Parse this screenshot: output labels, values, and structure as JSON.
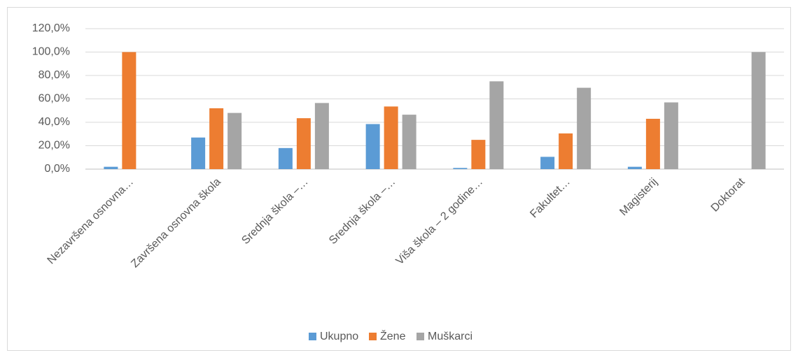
{
  "chart_data": {
    "type": "bar",
    "categories": [
      "Nezavršena osnovna…",
      "Završena osnovna škola",
      "Srednja škola –…",
      "Srednja škola –…",
      "Viša škola – 2 godine…",
      "Fakultet…",
      "Magisterij",
      "Doktorat"
    ],
    "series": [
      {
        "name": "Ukupno",
        "color": "#5b9bd5",
        "values": [
          2,
          27,
          18,
          38.5,
          1,
          10.5,
          2,
          0
        ]
      },
      {
        "name": "Žene",
        "color": "#ed7d31",
        "values": [
          100,
          52,
          43.5,
          53.5,
          25,
          30.5,
          43,
          0
        ]
      },
      {
        "name": "Muškarci",
        "color": "#a5a5a5",
        "values": [
          0,
          48,
          56.5,
          46.5,
          75,
          69.5,
          57,
          100
        ]
      }
    ],
    "ylim": [
      0,
      120
    ],
    "yticks": [
      {
        "value": 0,
        "label": "0,0%"
      },
      {
        "value": 20,
        "label": "20,0%"
      },
      {
        "value": 40,
        "label": "40,0%"
      },
      {
        "value": 60,
        "label": "60,0%"
      },
      {
        "value": 80,
        "label": "80,0%"
      },
      {
        "value": 100,
        "label": "100,0%"
      },
      {
        "value": 120,
        "label": "120,0%"
      }
    ],
    "grid": true,
    "legend": "bottom"
  }
}
